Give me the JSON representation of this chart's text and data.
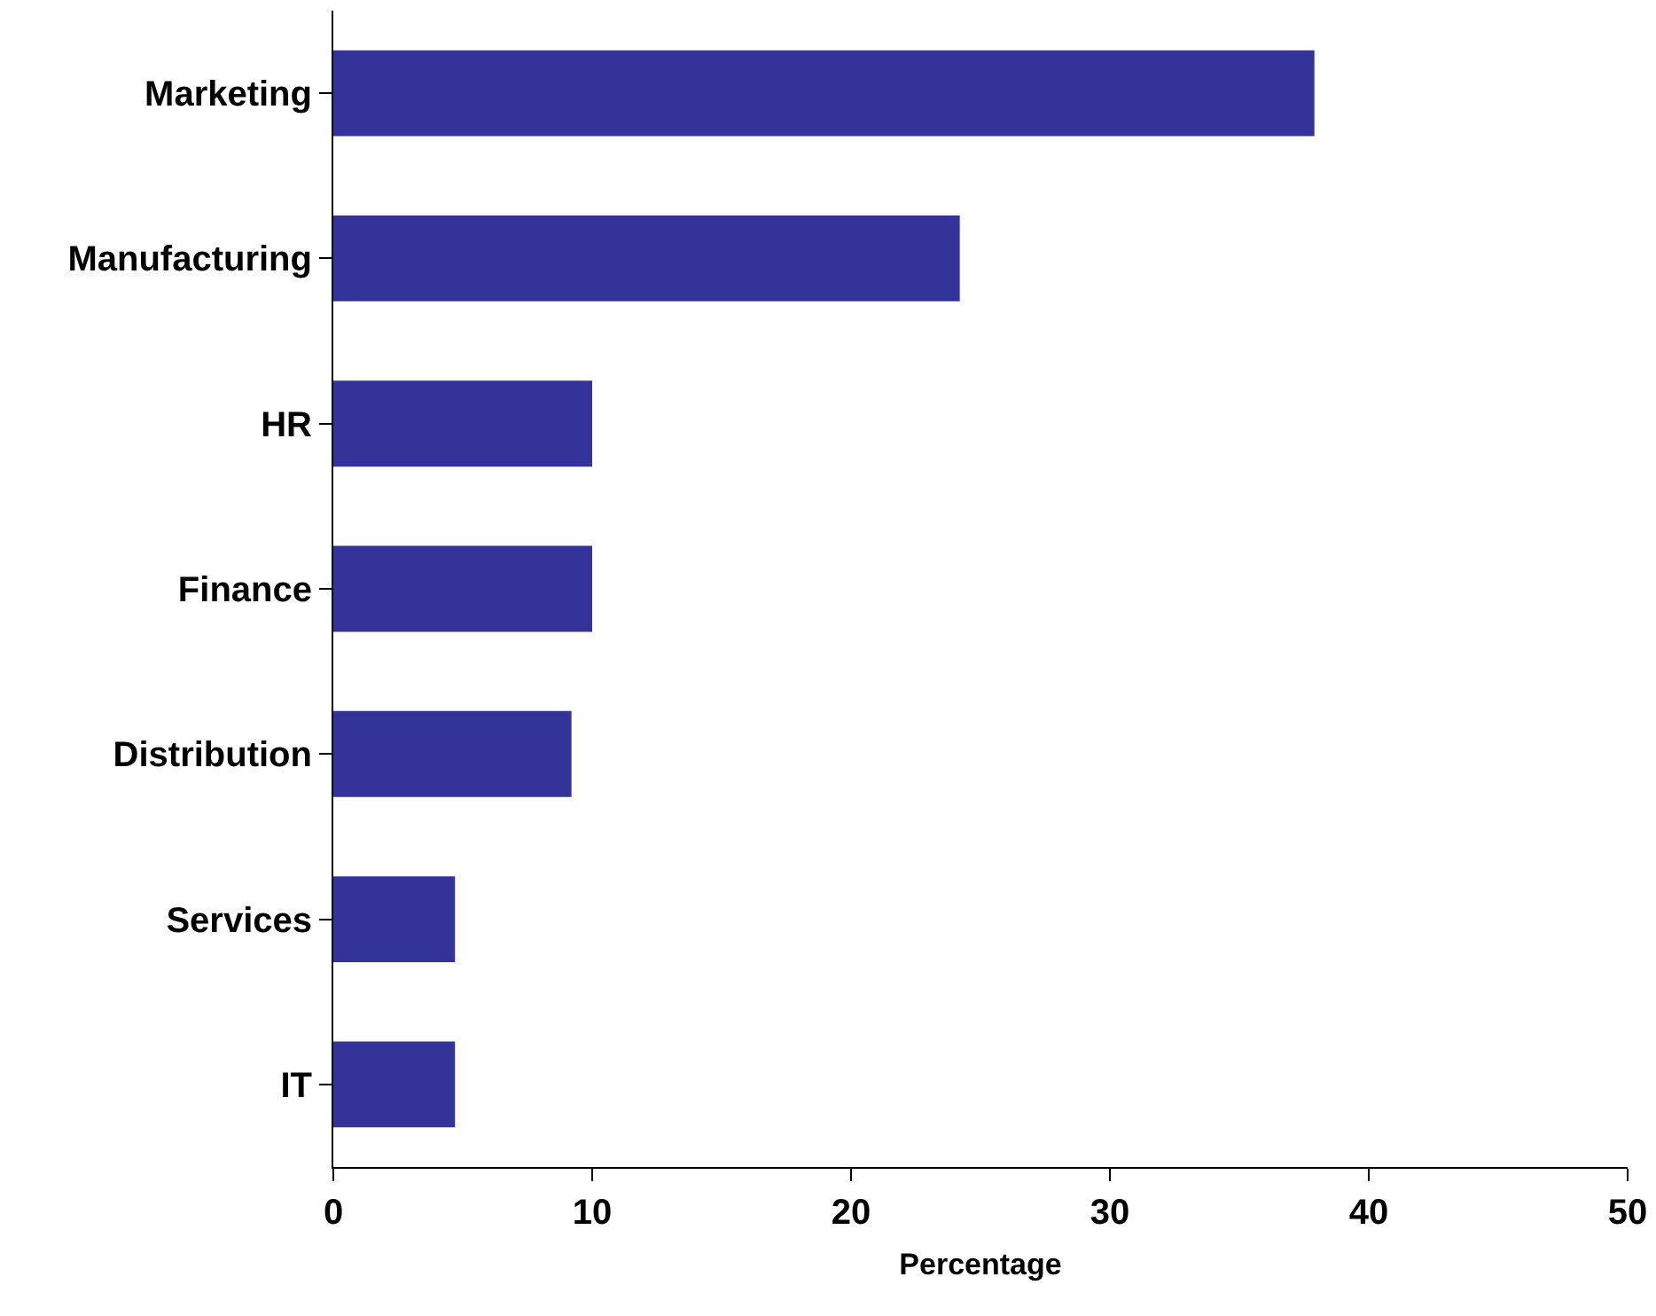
{
  "chart_data": {
    "type": "bar",
    "orientation": "horizontal",
    "categories": [
      "Marketing",
      "Manufacturing",
      "HR",
      "Finance",
      "Distribution",
      "Services",
      "IT"
    ],
    "values": [
      37.9,
      24.2,
      10.0,
      10.0,
      9.2,
      4.7,
      4.7
    ],
    "color": "#333399",
    "xlabel": "Percentage",
    "xlim": [
      0,
      50
    ],
    "xticks": [
      0,
      10,
      20,
      30,
      40,
      50
    ],
    "grid": false,
    "legend": false
  }
}
